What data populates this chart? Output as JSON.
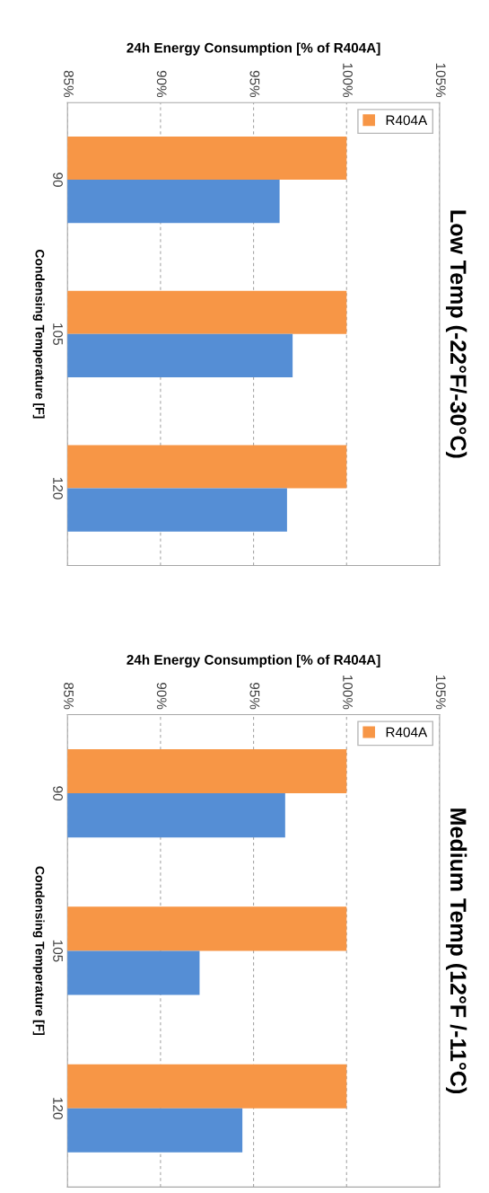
{
  "chart_data": [
    {
      "type": "bar",
      "orientation": "horizontal",
      "title": "Low Temp (-22°F/-30°C)",
      "xlabel": "24h Energy Consumption [% of R404A]",
      "ylabel": "Condensing Temperature [F]",
      "categories": [
        "90",
        "105",
        "120"
      ],
      "series": [
        {
          "name": "R404A",
          "color": "#f79646",
          "values": [
            100,
            100,
            100
          ]
        },
        {
          "color": "#558ed5",
          "values": [
            96.4,
            97.1,
            96.8
          ]
        }
      ],
      "xlim": [
        85,
        105
      ],
      "xticks": [
        {
          "value": 85,
          "label": "85%"
        },
        {
          "value": 90,
          "label": "90%"
        },
        {
          "value": 95,
          "label": "95%"
        },
        {
          "value": 100,
          "label": "100%"
        },
        {
          "value": 105,
          "label": "105%"
        }
      ],
      "grid": "x",
      "legend": "top right"
    },
    {
      "type": "bar",
      "orientation": "horizontal",
      "title": "Medium Temp (12°F /-11°C)",
      "xlabel": "24h Energy Consumption [% of R404A]",
      "ylabel": "Condensing Temperature [F]",
      "categories": [
        "90",
        "105",
        "120"
      ],
      "series": [
        {
          "name": "R404A",
          "color": "#f79646",
          "values": [
            100,
            100,
            100
          ]
        },
        {
          "color": "#558ed5",
          "values": [
            96.7,
            92.1,
            94.4
          ]
        }
      ],
      "xlim": [
        85,
        105
      ],
      "xticks": [
        {
          "value": 85,
          "label": "85%"
        },
        {
          "value": 90,
          "label": "90%"
        },
        {
          "value": 95,
          "label": "95%"
        },
        {
          "value": 100,
          "label": "100%"
        },
        {
          "value": 105,
          "label": "105%"
        }
      ],
      "grid": "x",
      "legend": "top right"
    }
  ]
}
